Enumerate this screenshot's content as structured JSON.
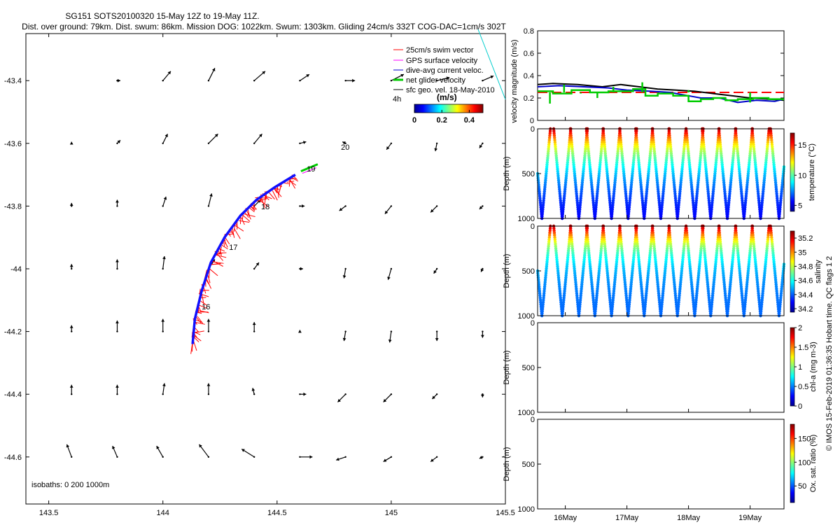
{
  "title_line1": "SG151 SOTS20100320 15-May 12Z to 19-May 11Z.",
  "title_line2": "Dist. over ground: 79km. Dist. swum: 86km. Mission DOG: 1022km. Swum: 1303km. Gliding 24cm/s 332T COG-DAC=1cm/s 302T",
  "side_label": "© IMOS 15-Feb-2019 01:36:35 Hobart time. QC flags 1  2",
  "colors": {
    "swim": "#ff0000",
    "gps": "#ff00ff",
    "dac": "#0000cc",
    "net": "#00cc00",
    "geo": "#000000",
    "track": "#1010ff"
  },
  "chart_data": [
    {
      "type": "scatter",
      "name": "map",
      "xlim": [
        143.4,
        145.5
      ],
      "ylim": [
        -44.75,
        -43.25
      ],
      "x_ticks": [
        143.5,
        144,
        144.5,
        145,
        145.5
      ],
      "x_tick_labels": [
        "143.5",
        "144",
        "144.5",
        "145",
        "145.5"
      ],
      "y_ticks": [
        -43.4,
        -43.6,
        -43.8,
        -44,
        -44.2,
        -44.4,
        -44.6
      ],
      "y_tick_labels": [
        "-43.4",
        "-43.6",
        "-43.8",
        "-44",
        "-44.2",
        "-44.4",
        "-44.6"
      ],
      "legend": [
        {
          "label": "25cm/s swim vector",
          "key": "swim"
        },
        {
          "label": "GPS surface velocity",
          "key": "gps"
        },
        {
          "label": "dive-avg current veloc.",
          "key": "dac"
        },
        {
          "label": "net glider velocity",
          "key": "net"
        },
        {
          "label": "sfc geo. vel. 18-May-2010",
          "key": "geo"
        }
      ],
      "speed_scale": {
        "label": "4h",
        "title": "(m/s)",
        "ticks": [
          "0",
          "0.2",
          "0.4"
        ],
        "range": [
          0,
          0.5
        ]
      },
      "isobath_label": "isobaths: 0   200   1000m",
      "track": [
        [
          144.13,
          -44.24
        ],
        [
          144.14,
          -44.16
        ],
        [
          144.17,
          -44.07
        ],
        [
          144.21,
          -43.98
        ],
        [
          144.27,
          -43.9
        ],
        [
          144.34,
          -43.83
        ],
        [
          144.41,
          -43.78
        ],
        [
          144.49,
          -43.74
        ],
        [
          144.58,
          -43.7
        ]
      ],
      "day_labels": [
        {
          "text": "16",
          "x": 144.17,
          "y": -44.13
        },
        {
          "text": "17",
          "x": 144.29,
          "y": -43.94
        },
        {
          "text": "18",
          "x": 144.43,
          "y": -43.81
        },
        {
          "text": "19",
          "x": 144.63,
          "y": -43.69
        },
        {
          "text": "20",
          "x": 144.78,
          "y": -43.62
        }
      ],
      "geo_vectors": [
        [
          143.8,
          -43.4,
          0.01,
          0
        ],
        [
          144,
          -43.4,
          0.025,
          0.03
        ],
        [
          144.2,
          -43.4,
          0.02,
          0.04
        ],
        [
          144.4,
          -43.4,
          0.035,
          0.03
        ],
        [
          144.6,
          -43.4,
          0.03,
          0.02
        ],
        [
          144.8,
          -43.4,
          0.03,
          0
        ],
        [
          145,
          -43.4,
          0.04,
          0.02
        ],
        [
          145.2,
          -43.4,
          0.04,
          0.01
        ],
        [
          145.4,
          -43.4,
          0.035,
          0.015
        ],
        [
          143.6,
          -43.6,
          0,
          0.005
        ],
        [
          143.8,
          -43.6,
          0.01,
          0.01
        ],
        [
          144,
          -43.6,
          0.015,
          0.03
        ],
        [
          144.2,
          -43.6,
          0.03,
          0.03
        ],
        [
          144.4,
          -43.6,
          0.025,
          0.03
        ],
        [
          144.6,
          -43.6,
          0.02,
          0.005
        ],
        [
          144.8,
          -43.6,
          -0.01,
          0.005
        ],
        [
          145,
          -43.6,
          -0.015,
          -0.02
        ],
        [
          145.2,
          -43.6,
          -0.005,
          -0.025
        ],
        [
          145.4,
          -43.6,
          -0.01,
          -0.015
        ],
        [
          143.6,
          -43.8,
          0,
          0.01
        ],
        [
          143.8,
          -43.8,
          0,
          0.02
        ],
        [
          144,
          -43.8,
          0.01,
          0.03
        ],
        [
          144.2,
          -43.8,
          0.01,
          0.04
        ],
        [
          144.4,
          -43.8,
          0.02,
          0.02
        ],
        [
          144.6,
          -43.8,
          0.015,
          0
        ],
        [
          144.8,
          -43.8,
          -0.02,
          -0.015
        ],
        [
          145,
          -43.8,
          -0.02,
          -0.025
        ],
        [
          145.2,
          -43.8,
          -0.02,
          -0.02
        ],
        [
          145.4,
          -43.8,
          -0.01,
          -0.01
        ],
        [
          143.6,
          -44,
          0,
          0.015
        ],
        [
          143.8,
          -44,
          0,
          0.03
        ],
        [
          144,
          -44,
          0.005,
          0.04
        ],
        [
          144.2,
          -44,
          0.02,
          0.03
        ],
        [
          144.4,
          -44,
          0.015,
          0.02
        ],
        [
          144.6,
          -44,
          0.01,
          0
        ],
        [
          144.8,
          -44,
          -0.005,
          -0.03
        ],
        [
          145,
          -44,
          -0.01,
          -0.035
        ],
        [
          145.2,
          -44,
          -0.01,
          -0.015
        ],
        [
          145.4,
          -44,
          -0.005,
          -0.01
        ],
        [
          143.6,
          -44.2,
          0,
          0.02
        ],
        [
          143.8,
          -44.2,
          0,
          0.035
        ],
        [
          144,
          -44.2,
          0,
          0.04
        ],
        [
          144.2,
          -44.2,
          0,
          0.04
        ],
        [
          144.4,
          -44.2,
          0,
          0.03
        ],
        [
          144.6,
          -44.2,
          0,
          0.005
        ],
        [
          144.8,
          -44.2,
          -0.005,
          -0.03
        ],
        [
          145,
          -44.2,
          -0.005,
          -0.035
        ],
        [
          145.2,
          -44.2,
          0,
          -0.03
        ],
        [
          145.4,
          -44.2,
          0,
          -0.02
        ],
        [
          143.6,
          -44.4,
          0,
          0.03
        ],
        [
          143.8,
          -44.4,
          0,
          0.03
        ],
        [
          144,
          -44.4,
          0.005,
          0.035
        ],
        [
          144.2,
          -44.4,
          0,
          0.035
        ],
        [
          144.4,
          -44.4,
          -0.005,
          0.02
        ],
        [
          144.6,
          -44.4,
          0.02,
          0
        ],
        [
          144.8,
          -44.4,
          -0.025,
          -0.025
        ],
        [
          145,
          -44.4,
          -0.025,
          -0.025
        ],
        [
          145.2,
          -44.4,
          -0.015,
          -0.015
        ],
        [
          145.4,
          -44.4,
          0,
          -0.01
        ],
        [
          143.6,
          -44.6,
          -0.015,
          0.04
        ],
        [
          143.8,
          -44.6,
          -0.015,
          0.035
        ],
        [
          144,
          -44.6,
          -0.02,
          0.035
        ],
        [
          144.2,
          -44.6,
          -0.03,
          0.04
        ],
        [
          144.4,
          -44.6,
          -0.04,
          0.025
        ],
        [
          144.6,
          -44.6,
          0.04,
          0
        ],
        [
          144.8,
          -44.6,
          -0.03,
          -0.01
        ],
        [
          145,
          -44.6,
          -0.025,
          -0.015
        ],
        [
          145.2,
          -44.6,
          -0.02,
          -0.015
        ],
        [
          145.4,
          -44.6,
          -0.01,
          -0.005
        ]
      ]
    },
    {
      "type": "line",
      "name": "velocity",
      "ylabel": "velocity magnitude (m/s)",
      "ylim": [
        0,
        0.8
      ],
      "y_ticks": [
        0,
        0.2,
        0.4,
        0.6,
        0.8
      ],
      "y_tick_labels": [
        "0",
        "0.2",
        "0.4",
        "0.6",
        "0.8"
      ],
      "xlim": [
        15.55,
        19.55
      ],
      "series": [
        {
          "name": "swim",
          "key": "swim",
          "dashed": true,
          "x": [
            15.55,
            19.55
          ],
          "y": [
            0.25,
            0.25
          ]
        },
        {
          "name": "geo",
          "key": "geo",
          "x": [
            15.55,
            15.8,
            16.2,
            16.6,
            16.9,
            17.2,
            17.5,
            17.8,
            18.1,
            18.4,
            18.7,
            19.0,
            19.3,
            19.55
          ],
          "y": [
            0.32,
            0.33,
            0.32,
            0.3,
            0.32,
            0.3,
            0.28,
            0.27,
            0.26,
            0.24,
            0.22,
            0.2,
            0.19,
            0.18
          ]
        },
        {
          "name": "dac",
          "key": "dac",
          "x": [
            15.55,
            15.9,
            16.3,
            16.7,
            17.0,
            17.4,
            17.7,
            18.0,
            18.2,
            18.5,
            18.8,
            19.1,
            19.4,
            19.55
          ],
          "y": [
            0.3,
            0.31,
            0.3,
            0.29,
            0.27,
            0.26,
            0.25,
            0.22,
            0.2,
            0.2,
            0.16,
            0.18,
            0.17,
            0.19
          ]
        },
        {
          "name": "net",
          "key": "net",
          "stepped": true,
          "x": [
            15.55,
            15.8,
            16.1,
            16.4,
            16.7,
            17.1,
            17.3,
            17.5,
            17.75,
            18.0,
            18.2,
            18.4,
            18.6,
            18.8,
            19.05,
            19.3,
            19.55
          ],
          "y": [
            0.26,
            0.24,
            0.27,
            0.25,
            0.26,
            0.28,
            0.22,
            0.24,
            0.22,
            0.17,
            0.19,
            0.2,
            0.18,
            0.19,
            0.2,
            0.19,
            0.18
          ]
        }
      ],
      "net_spikes": [
        [
          15.75,
          0.15
        ],
        [
          15.98,
          0.32
        ],
        [
          16.25,
          0.24
        ],
        [
          16.52,
          0.2
        ],
        [
          16.78,
          0.3
        ],
        [
          17.25,
          0.34
        ],
        [
          18.0,
          0.27
        ],
        [
          19.0,
          0.16
        ]
      ]
    },
    {
      "type": "scatter",
      "name": "temperature",
      "ylabel": "Depth (m)",
      "ylim": [
        0,
        1000
      ],
      "y_ticks": [
        0,
        500,
        1000
      ],
      "y_tick_labels": [
        "0",
        "500",
        "1000"
      ],
      "cbar_label": "temperature (°C)",
      "cbar_range": [
        4,
        17
      ],
      "cbar_ticks": [
        "15",
        "10",
        "5"
      ],
      "cbar_values": [
        15,
        10,
        5
      ],
      "surface_value": 16.5,
      "deep_value": 4.5
    },
    {
      "type": "scatter",
      "name": "salinity",
      "ylabel": "Depth (m)",
      "ylim": [
        0,
        1000
      ],
      "y_ticks": [
        0,
        500,
        1000
      ],
      "y_tick_labels": [
        "0",
        "500",
        "1000"
      ],
      "cbar_label": "salinity",
      "cbar_range": [
        34.15,
        35.3
      ],
      "cbar_ticks": [
        "35.2",
        "35",
        "34.8",
        "34.6",
        "34.4",
        "34.2"
      ],
      "cbar_values": [
        35.2,
        35.0,
        34.8,
        34.6,
        34.4,
        34.2
      ],
      "surface_value": 35.25,
      "deep_value": 34.4
    },
    {
      "type": "scatter",
      "name": "chla",
      "ylabel": "Depth (m)",
      "ylim": [
        0,
        1000
      ],
      "y_ticks": [
        0,
        500,
        1000
      ],
      "y_tick_labels": [
        "0",
        "500",
        "1000"
      ],
      "cbar_label": "chl-a (mg m-3)",
      "cbar_range": [
        0,
        2
      ],
      "cbar_ticks": [
        "2",
        "1.5",
        "1",
        "0.5",
        "0"
      ],
      "cbar_values": [
        2,
        1.5,
        1,
        0.5,
        0
      ]
    },
    {
      "type": "scatter",
      "name": "oxygen",
      "ylabel": "Depth (m)",
      "ylim": [
        0,
        1000
      ],
      "y_ticks": [
        0,
        500,
        1000
      ],
      "y_tick_labels": [
        "0",
        "500",
        "1000"
      ],
      "cbar_label": "Ox. sat. ratio (%)",
      "cbar_range": [
        15,
        180
      ],
      "cbar_ticks": [
        "150",
        "100",
        "50"
      ],
      "cbar_values": [
        150,
        100,
        50
      ]
    },
    {
      "type": "table",
      "name": "time_axis",
      "xlim": [
        15.55,
        19.55
      ],
      "dive_times": [
        15.62,
        15.95,
        16.22,
        16.48,
        16.75,
        17.02,
        17.28,
        17.55,
        17.82,
        18.1,
        18.36,
        18.63,
        18.9,
        19.17,
        19.47
      ],
      "x_ticks": [
        16,
        17,
        18,
        19
      ],
      "x_tick_labels": [
        "16May",
        "17May",
        "18May",
        "19May"
      ]
    }
  ]
}
